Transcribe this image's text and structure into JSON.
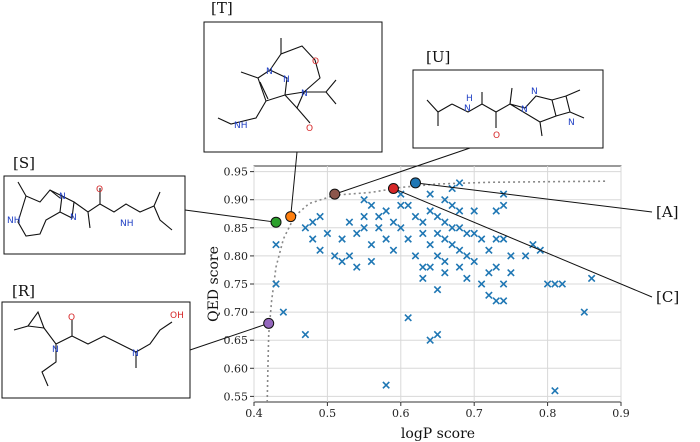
{
  "chart_data": {
    "type": "scatter",
    "xlabel": "logP score",
    "ylabel": "QED score",
    "xlim": [
      0.4,
      0.9
    ],
    "ylim": [
      0.54,
      0.96
    ],
    "xticks": [
      "0.4",
      "0.5",
      "0.6",
      "0.7",
      "0.8",
      "0.9"
    ],
    "yticks": [
      "0.55",
      "0.60",
      "0.65",
      "0.70",
      "0.75",
      "0.80",
      "0.85",
      "0.90",
      "0.95"
    ],
    "grid": true,
    "marker_color": "#1f77b4",
    "frontier_curve": [
      [
        0.418,
        0.54
      ],
      [
        0.419,
        0.6
      ],
      [
        0.42,
        0.66
      ],
      [
        0.424,
        0.72
      ],
      [
        0.43,
        0.78
      ],
      [
        0.44,
        0.83
      ],
      [
        0.455,
        0.87
      ],
      [
        0.475,
        0.893
      ],
      [
        0.51,
        0.908
      ],
      [
        0.56,
        0.913
      ],
      [
        0.6,
        0.922
      ],
      [
        0.65,
        0.928
      ],
      [
        0.72,
        0.931
      ],
      [
        0.8,
        0.932
      ],
      [
        0.88,
        0.933
      ]
    ],
    "scatter_points": [
      [
        0.43,
        0.82
      ],
      [
        0.43,
        0.75
      ],
      [
        0.44,
        0.7
      ],
      [
        0.47,
        0.66
      ],
      [
        0.47,
        0.85
      ],
      [
        0.48,
        0.83
      ],
      [
        0.48,
        0.86
      ],
      [
        0.49,
        0.81
      ],
      [
        0.49,
        0.87
      ],
      [
        0.5,
        0.84
      ],
      [
        0.51,
        0.8
      ],
      [
        0.52,
        0.79
      ],
      [
        0.52,
        0.83
      ],
      [
        0.53,
        0.8
      ],
      [
        0.53,
        0.86
      ],
      [
        0.54,
        0.84
      ],
      [
        0.54,
        0.78
      ],
      [
        0.55,
        0.9
      ],
      [
        0.55,
        0.87
      ],
      [
        0.55,
        0.85
      ],
      [
        0.56,
        0.89
      ],
      [
        0.56,
        0.82
      ],
      [
        0.56,
        0.79
      ],
      [
        0.57,
        0.87
      ],
      [
        0.57,
        0.85
      ],
      [
        0.58,
        0.88
      ],
      [
        0.58,
        0.83
      ],
      [
        0.58,
        0.57
      ],
      [
        0.59,
        0.86
      ],
      [
        0.59,
        0.81
      ],
      [
        0.6,
        0.91
      ],
      [
        0.6,
        0.89
      ],
      [
        0.6,
        0.85
      ],
      [
        0.61,
        0.89
      ],
      [
        0.61,
        0.83
      ],
      [
        0.61,
        0.69
      ],
      [
        0.62,
        0.87
      ],
      [
        0.62,
        0.8
      ],
      [
        0.63,
        0.86
      ],
      [
        0.63,
        0.84
      ],
      [
        0.63,
        0.78
      ],
      [
        0.63,
        0.76
      ],
      [
        0.64,
        0.91
      ],
      [
        0.64,
        0.88
      ],
      [
        0.64,
        0.82
      ],
      [
        0.64,
        0.78
      ],
      [
        0.64,
        0.65
      ],
      [
        0.65,
        0.87
      ],
      [
        0.65,
        0.84
      ],
      [
        0.65,
        0.8
      ],
      [
        0.65,
        0.74
      ],
      [
        0.65,
        0.66
      ],
      [
        0.66,
        0.9
      ],
      [
        0.66,
        0.86
      ],
      [
        0.66,
        0.83
      ],
      [
        0.66,
        0.79
      ],
      [
        0.66,
        0.77
      ],
      [
        0.67,
        0.92
      ],
      [
        0.67,
        0.89
      ],
      [
        0.67,
        0.85
      ],
      [
        0.67,
        0.82
      ],
      [
        0.68,
        0.93
      ],
      [
        0.68,
        0.88
      ],
      [
        0.68,
        0.85
      ],
      [
        0.68,
        0.81
      ],
      [
        0.68,
        0.78
      ],
      [
        0.69,
        0.84
      ],
      [
        0.69,
        0.8
      ],
      [
        0.69,
        0.76
      ],
      [
        0.7,
        0.88
      ],
      [
        0.7,
        0.84
      ],
      [
        0.7,
        0.79
      ],
      [
        0.71,
        0.83
      ],
      [
        0.71,
        0.75
      ],
      [
        0.72,
        0.81
      ],
      [
        0.72,
        0.77
      ],
      [
        0.72,
        0.73
      ],
      [
        0.73,
        0.88
      ],
      [
        0.73,
        0.83
      ],
      [
        0.73,
        0.78
      ],
      [
        0.73,
        0.72
      ],
      [
        0.74,
        0.91
      ],
      [
        0.74,
        0.89
      ],
      [
        0.74,
        0.83
      ],
      [
        0.74,
        0.75
      ],
      [
        0.74,
        0.72
      ],
      [
        0.75,
        0.8
      ],
      [
        0.75,
        0.77
      ],
      [
        0.77,
        0.8
      ],
      [
        0.78,
        0.82
      ],
      [
        0.79,
        0.81
      ],
      [
        0.8,
        0.75
      ],
      [
        0.81,
        0.75
      ],
      [
        0.81,
        0.56
      ],
      [
        0.82,
        0.75
      ],
      [
        0.85,
        0.7
      ],
      [
        0.86,
        0.76
      ]
    ],
    "highlighted_points": [
      {
        "label": "[R]",
        "x": 0.42,
        "y": 0.68,
        "color": "#9467bd"
      },
      {
        "label": "[S]",
        "x": 0.43,
        "y": 0.86,
        "color": "#2ca02c"
      },
      {
        "label": "[T]",
        "x": 0.45,
        "y": 0.87,
        "color": "#ff7f0e"
      },
      {
        "label": "[U]",
        "x": 0.51,
        "y": 0.91,
        "color": "#8c564b"
      },
      {
        "label": "[C]",
        "x": 0.59,
        "y": 0.92,
        "color": "#d62728"
      },
      {
        "label": "[A]",
        "x": 0.62,
        "y": 0.93,
        "color": "#1f77b4"
      }
    ]
  },
  "molecule_labels": {
    "T": "[T]",
    "U": "[U]",
    "S": "[S]",
    "R": "[R]"
  },
  "callout_labels": {
    "A": "[A]",
    "C": "[C]"
  },
  "atoms": {
    "T": [
      "N",
      "N",
      "O",
      "N",
      "NH",
      "O"
    ],
    "U": [
      "H",
      "N",
      "N",
      "N",
      "O",
      "N"
    ],
    "S": [
      "NH",
      "N",
      "N",
      "O",
      "NH"
    ],
    "R": [
      "N",
      "O",
      "N",
      "OH"
    ]
  }
}
